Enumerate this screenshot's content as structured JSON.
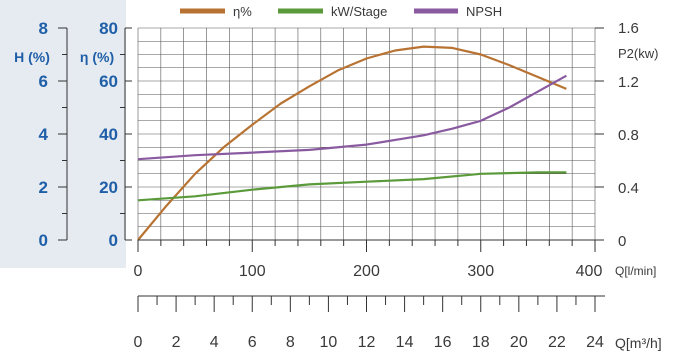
{
  "chart_data": {
    "type": "line",
    "legend_position": "top",
    "grid": true,
    "series": [
      {
        "name": "η%",
        "color": "#b87333",
        "axis": "eta",
        "x": [
          0,
          25,
          50,
          75,
          100,
          125,
          150,
          175,
          200,
          225,
          250,
          275,
          300,
          325,
          350,
          375
        ],
        "y": [
          0,
          13,
          25,
          35,
          43.5,
          51.5,
          58,
          64,
          68.5,
          71.5,
          73,
          72.5,
          70,
          66,
          61.5,
          57
        ]
      },
      {
        "name": "kW/Stage",
        "color": "#5a9a3a",
        "axis": "p2",
        "x": [
          0,
          50,
          100,
          150,
          200,
          250,
          300,
          350,
          375
        ],
        "y": [
          0.3,
          0.33,
          0.38,
          0.42,
          0.44,
          0.46,
          0.5,
          0.51,
          0.51
        ]
      },
      {
        "name": "NPSH",
        "color": "#8a5aa0",
        "axis": "h",
        "x": [
          0,
          50,
          100,
          150,
          200,
          250,
          275,
          300,
          325,
          350,
          375
        ],
        "y": [
          3.05,
          3.2,
          3.3,
          3.4,
          3.6,
          3.95,
          4.2,
          4.5,
          5.0,
          5.6,
          6.2
        ]
      }
    ],
    "axes": {
      "q_lmin": {
        "label": "Q[l/min]",
        "min": 0,
        "max": 400,
        "ticks": [
          "0",
          "100",
          "200",
          "300",
          "400"
        ]
      },
      "q_m3h": {
        "label": "Q[m³/h]",
        "min": 0,
        "max": 24,
        "ticks": [
          "0",
          "2",
          "4",
          "6",
          "8",
          "10",
          "12",
          "14",
          "16",
          "18",
          "20",
          "22",
          "24"
        ]
      },
      "h": {
        "label": "H (%)",
        "min": 0,
        "max": 8,
        "ticks": [
          "0",
          "2",
          "4",
          "6",
          "8"
        ]
      },
      "eta": {
        "label": "η (%)",
        "min": 0,
        "max": 80,
        "ticks": [
          "0",
          "20",
          "40",
          "60",
          "80"
        ]
      },
      "p2": {
        "label": "P2(kw)",
        "min": 0,
        "max": 1.6,
        "ticks": [
          "0",
          "0.4",
          "0.8",
          "1.2",
          "1.6"
        ]
      }
    }
  }
}
